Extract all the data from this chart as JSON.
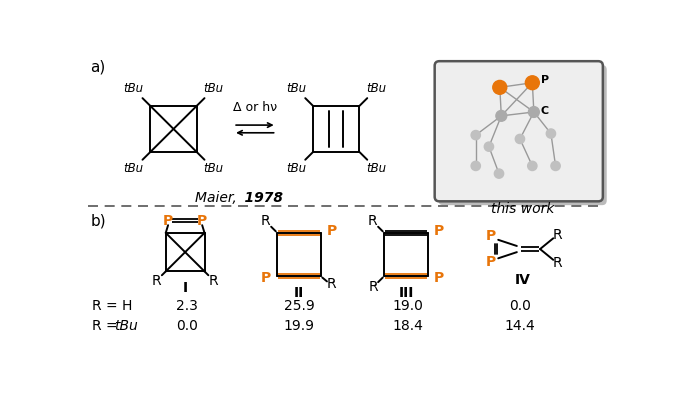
{
  "bg_color": "#ffffff",
  "orange_color": "#E8750A",
  "black_color": "#000000",
  "panel_a_label": "a)",
  "panel_b_label": "b)",
  "maier_italic": "Maier, ",
  "maier_bold": "1978",
  "this_work_text": "this work",
  "rH_label": "R = H",
  "rtBu_label_plain": "R = ",
  "rtBu_label_italic": "t",
  "rtBu_label_rest": "Bu",
  "rH_values": [
    "2.3",
    "25.9",
    "19.0",
    "0.0"
  ],
  "rtBu_values": [
    "0.0",
    "19.9",
    "18.4",
    "14.4"
  ],
  "roman_labels": [
    "I",
    "II",
    "III",
    "IV"
  ],
  "dft_box_bg": "#eeeeee",
  "dft_box_edge": "#555555",
  "dft_shadow": "#bbbbbb",
  "dft_gray_atom": "#aaaaaa",
  "dft_gray_small": "#c0c0c0"
}
